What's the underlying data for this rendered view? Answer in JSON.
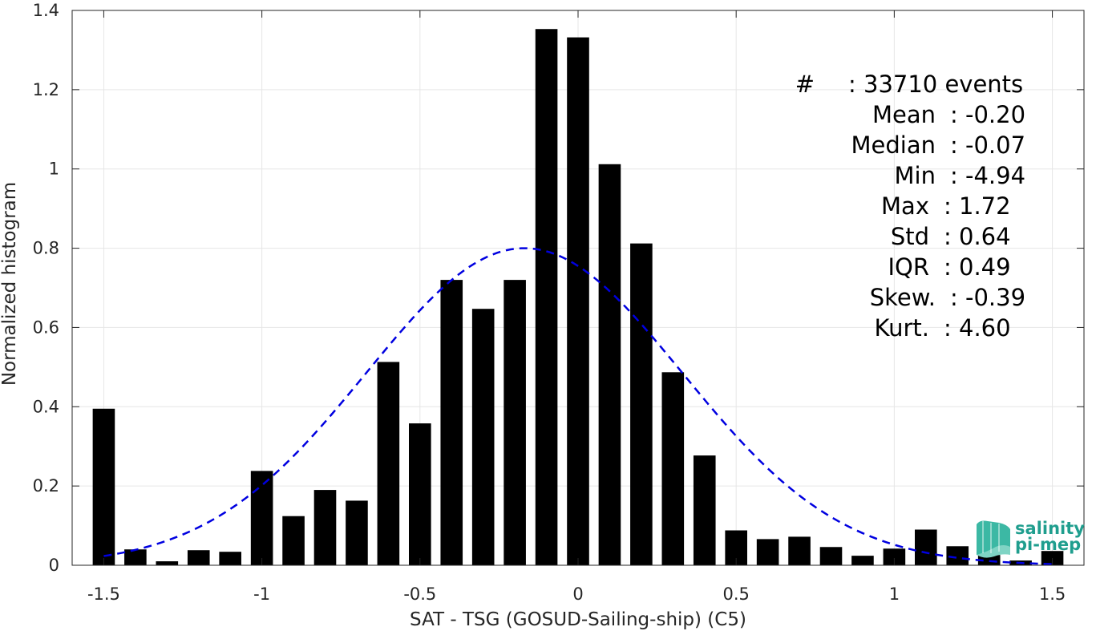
{
  "chart_data": {
    "type": "bar",
    "xlabel": "SAT - TSG (GOSUD-Sailing-ship) (C5)",
    "ylabel": "Normalized histogram",
    "xlim": [
      -1.6,
      1.6
    ],
    "ylim": [
      0,
      1.4
    ],
    "xticks": [
      "-1.5",
      "-1",
      "-0.5",
      "0",
      "0.5",
      "1",
      "1.5"
    ],
    "xtick_values": [
      -1.5,
      -1,
      -0.5,
      0,
      0.5,
      1,
      1.5
    ],
    "yticks": [
      "0",
      "0.2",
      "0.4",
      "0.6",
      "0.8",
      "1",
      "1.2",
      "1.4"
    ],
    "ytick_values": [
      0,
      0.2,
      0.4,
      0.6,
      0.8,
      1.0,
      1.2,
      1.4
    ],
    "grid": true,
    "bar_width": 0.07,
    "x": [
      -1.5,
      -1.4,
      -1.3,
      -1.2,
      -1.1,
      -1.0,
      -0.9,
      -0.8,
      -0.7,
      -0.6,
      -0.5,
      -0.4,
      -0.3,
      -0.2,
      -0.1,
      0.0,
      0.1,
      0.2,
      0.3,
      0.4,
      0.5,
      0.6,
      0.7,
      0.8,
      0.9,
      1.0,
      1.1,
      1.2,
      1.3,
      1.4,
      1.5
    ],
    "values": [
      0.395,
      0.04,
      0.01,
      0.038,
      0.034,
      0.238,
      0.124,
      0.19,
      0.163,
      0.513,
      0.358,
      0.72,
      0.647,
      0.72,
      1.353,
      1.332,
      1.012,
      0.812,
      0.487,
      0.277,
      0.088,
      0.066,
      0.072,
      0.046,
      0.024,
      0.042,
      0.09,
      0.048,
      0.026,
      0.012,
      0.036
    ],
    "bar_color": "#000000",
    "fit_curve": {
      "style": "dashed",
      "color": "#0000e0",
      "mean": -0.17,
      "std": 0.5,
      "peak": 0.8
    },
    "stats": [
      {
        "label": "#",
        "value": ": 33710 events"
      },
      {
        "label": "Mean",
        "value": ": -0.20"
      },
      {
        "label": "Median",
        "value": ": -0.07"
      },
      {
        "label": "Min",
        "value": ": -4.94"
      },
      {
        "label": "Max",
        "value": ": 1.72"
      },
      {
        "label": "Std",
        "value": ": 0.64"
      },
      {
        "label": "IQR",
        "value": ": 0.49"
      },
      {
        "label": "Skew.",
        "value": ": -0.39"
      },
      {
        "label": "Kurt.",
        "value": ": 4.60"
      }
    ]
  },
  "logo": {
    "line1": "salinity",
    "line2": "pi-mep",
    "color": "#1f9e8e"
  }
}
